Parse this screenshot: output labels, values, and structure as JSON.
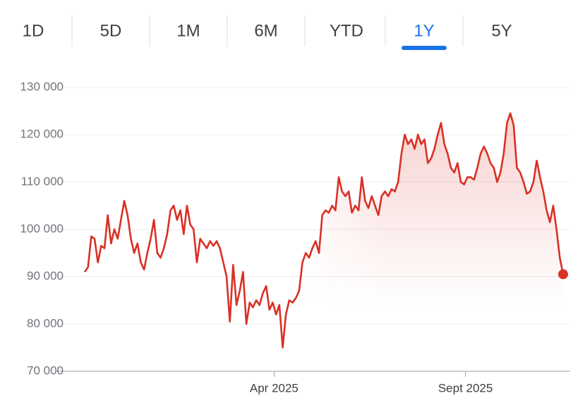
{
  "range_tabs": {
    "tabs": [
      "1D",
      "5D",
      "1M",
      "6M",
      "YTD",
      "1Y",
      "5Y"
    ],
    "selected": "1Y"
  },
  "chart_data": {
    "type": "line",
    "color": "#d93025",
    "values": [
      91000,
      92000,
      98500,
      98000,
      93000,
      96500,
      96000,
      103000,
      97000,
      100000,
      98000,
      102000,
      106000,
      103000,
      98000,
      95000,
      97000,
      93000,
      91500,
      95000,
      98000,
      102000,
      95000,
      94000,
      96000,
      99000,
      104000,
      105000,
      102000,
      104000,
      99000,
      105000,
      101000,
      100000,
      93000,
      98000,
      97000,
      96000,
      97500,
      96500,
      97500,
      96000,
      93000,
      90000,
      80500,
      92500,
      84000,
      87000,
      91000,
      80000,
      84500,
      83500,
      85000,
      84000,
      86500,
      88000,
      83000,
      84500,
      82000,
      84000,
      75000,
      82000,
      85000,
      84500,
      85500,
      87000,
      93000,
      95000,
      94000,
      96000,
      97500,
      95000,
      103000,
      104000,
      103500,
      105000,
      104000,
      111000,
      108000,
      107000,
      108000,
      103500,
      105000,
      104000,
      111000,
      106000,
      104500,
      107000,
      105000,
      103000,
      107000,
      108000,
      107000,
      108500,
      108000,
      110000,
      116000,
      120000,
      118000,
      119000,
      117000,
      120000,
      118000,
      119000,
      114000,
      115000,
      117000,
      120000,
      122500,
      118000,
      116000,
      113000,
      112000,
      114000,
      110000,
      109500,
      111000,
      111000,
      110500,
      113000,
      116000,
      117500,
      116000,
      114000,
      113000,
      110000,
      112000,
      116000,
      122500,
      124500,
      122000,
      113000,
      112000,
      110000,
      107500,
      108000,
      110000,
      114500,
      111000,
      108000,
      104000,
      101500,
      105000,
      100000,
      94000,
      90500
    ],
    "xlim": [
      0,
      145
    ],
    "xticks": [
      {
        "value": 57.4,
        "label": "Apr 2025"
      },
      {
        "value": 115.4,
        "label": "Sept 2025"
      }
    ],
    "ylim": [
      70000,
      130000
    ],
    "yticks": [
      {
        "value": 70000,
        "label": "70 000"
      },
      {
        "value": 80000,
        "label": "80 000"
      },
      {
        "value": 90000,
        "label": "90 000"
      },
      {
        "value": 100000,
        "label": "100 000"
      },
      {
        "value": 110000,
        "label": "110 000"
      },
      {
        "value": 120000,
        "label": "120 000"
      },
      {
        "value": 130000,
        "label": "130 000"
      }
    ],
    "grid": true,
    "end_marker": true
  }
}
